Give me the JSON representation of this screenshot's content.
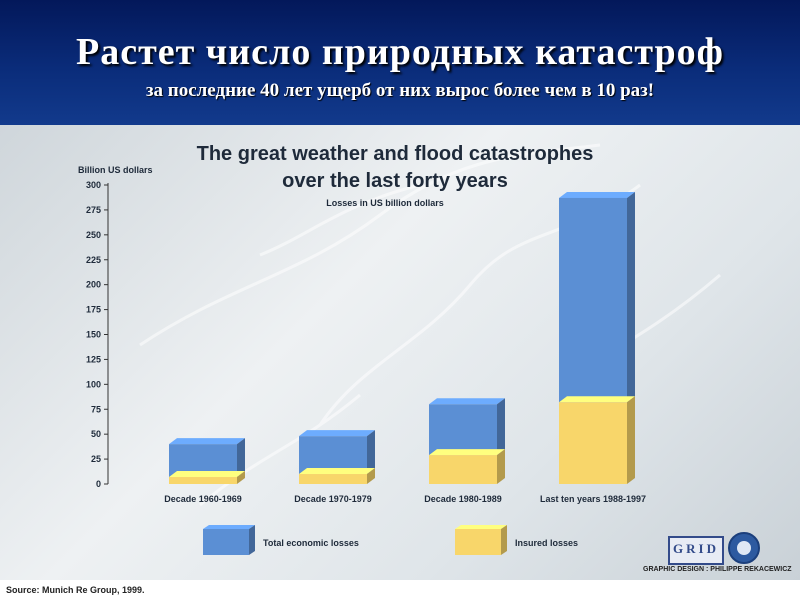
{
  "header": {
    "title": "Растет число природных катастроф",
    "subtitle": "за последние 40 лет ущерб от них вырос более чем в 10 раз!"
  },
  "chart_data": {
    "type": "bar",
    "title": "The great weather and flood catastrophes",
    "title_line2": "over the last forty years",
    "subtitle": "Losses in US billion dollars",
    "ylabel": "Billion US dollars",
    "ylim": [
      0,
      300
    ],
    "yticks": [
      0,
      25,
      50,
      75,
      100,
      125,
      150,
      175,
      200,
      225,
      250,
      275,
      300
    ],
    "categories": [
      "Decade 1960-1969",
      "Decade 1970-1979",
      "Decade 1980-1989",
      "Last ten years 1988-1997"
    ],
    "series": [
      {
        "name": "Total economic losses",
        "values": [
          40,
          48,
          80,
          287
        ],
        "color": "#5b8fd4"
      },
      {
        "name": "Insured losses",
        "values": [
          7,
          10,
          29,
          82
        ],
        "color": "#f8d66a"
      }
    ],
    "legend_position": "bottom",
    "grid": false
  },
  "footer": {
    "source": "Source: Munich Re Group, 1999.",
    "logo_text": "GRID",
    "credit": "GRAPHIC DESIGN : PHILIPPE REKACEWICZ"
  }
}
